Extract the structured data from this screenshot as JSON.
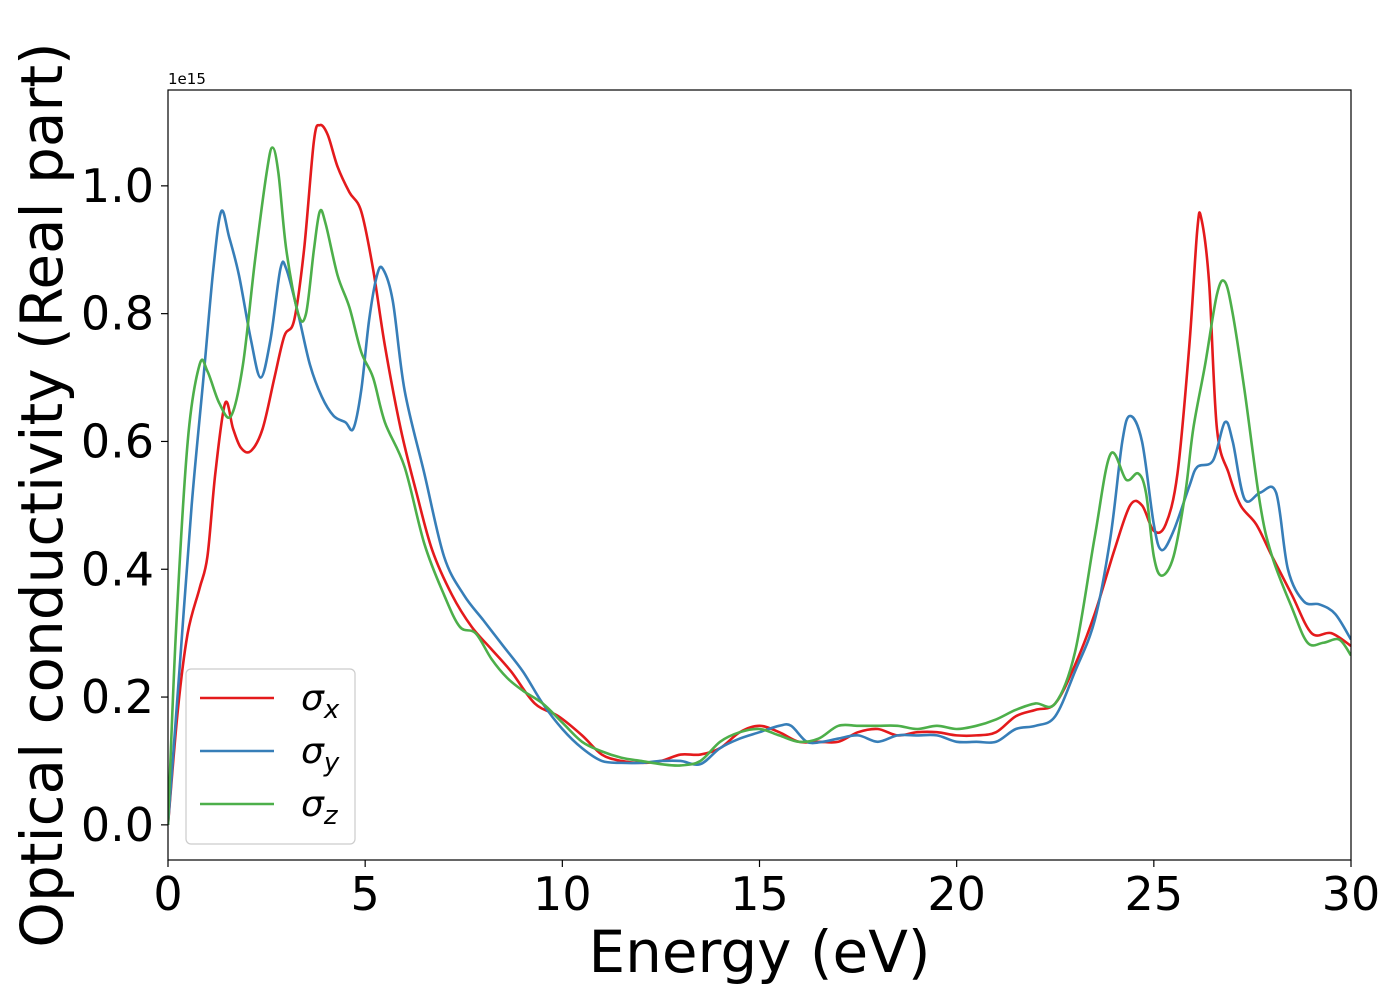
{
  "chart_data": {
    "type": "line",
    "title": "",
    "xlabel": "Energy (eV)",
    "ylabel": "Optical conductivity (Real part)",
    "y_offset_label": "1e15",
    "xlim": [
      0,
      30
    ],
    "ylim": [
      -0.055,
      1.15
    ],
    "x_ticks": [
      0,
      5,
      10,
      15,
      20,
      25,
      30
    ],
    "x_tick_labels": [
      "0",
      "5",
      "10",
      "15",
      "20",
      "25",
      "30"
    ],
    "y_ticks": [
      0.0,
      0.2,
      0.4,
      0.6,
      0.8,
      1.0
    ],
    "y_tick_labels": [
      "0.0",
      "0.2",
      "0.4",
      "0.6",
      "0.8",
      "1.0"
    ],
    "grid": false,
    "legend_position": "lower-left",
    "series": [
      {
        "name": "σx",
        "base": "σ",
        "sub": "x",
        "color": "#e41a1c",
        "points": [
          [
            0,
            0
          ],
          [
            0.25,
            0.18
          ],
          [
            0.5,
            0.3
          ],
          [
            0.8,
            0.37
          ],
          [
            1.0,
            0.42
          ],
          [
            1.2,
            0.55
          ],
          [
            1.45,
            0.66
          ],
          [
            1.65,
            0.62
          ],
          [
            1.85,
            0.59
          ],
          [
            2.1,
            0.585
          ],
          [
            2.4,
            0.62
          ],
          [
            2.7,
            0.7
          ],
          [
            2.95,
            0.765
          ],
          [
            3.2,
            0.79
          ],
          [
            3.45,
            0.9
          ],
          [
            3.7,
            1.07
          ],
          [
            3.85,
            1.095
          ],
          [
            4.05,
            1.08
          ],
          [
            4.3,
            1.03
          ],
          [
            4.6,
            0.99
          ],
          [
            4.9,
            0.96
          ],
          [
            5.2,
            0.87
          ],
          [
            5.5,
            0.75
          ],
          [
            5.9,
            0.62
          ],
          [
            6.3,
            0.52
          ],
          [
            6.7,
            0.43
          ],
          [
            7.2,
            0.36
          ],
          [
            7.7,
            0.31
          ],
          [
            8.2,
            0.275
          ],
          [
            8.7,
            0.24
          ],
          [
            9.3,
            0.19
          ],
          [
            9.9,
            0.17
          ],
          [
            10.5,
            0.14
          ],
          [
            11.0,
            0.11
          ],
          [
            11.5,
            0.1
          ],
          [
            12.0,
            0.097
          ],
          [
            12.5,
            0.1
          ],
          [
            13.0,
            0.11
          ],
          [
            13.5,
            0.11
          ],
          [
            14.0,
            0.12
          ],
          [
            14.5,
            0.145
          ],
          [
            15.0,
            0.155
          ],
          [
            15.5,
            0.145
          ],
          [
            16.0,
            0.13
          ],
          [
            16.5,
            0.13
          ],
          [
            17.0,
            0.13
          ],
          [
            17.5,
            0.145
          ],
          [
            18.0,
            0.15
          ],
          [
            18.5,
            0.14
          ],
          [
            19.0,
            0.145
          ],
          [
            19.5,
            0.145
          ],
          [
            20.0,
            0.14
          ],
          [
            20.5,
            0.14
          ],
          [
            21.0,
            0.145
          ],
          [
            21.5,
            0.17
          ],
          [
            22.0,
            0.18
          ],
          [
            22.5,
            0.19
          ],
          [
            23.0,
            0.25
          ],
          [
            23.5,
            0.33
          ],
          [
            24.0,
            0.43
          ],
          [
            24.4,
            0.5
          ],
          [
            24.7,
            0.5
          ],
          [
            25.0,
            0.46
          ],
          [
            25.3,
            0.47
          ],
          [
            25.6,
            0.55
          ],
          [
            25.9,
            0.75
          ],
          [
            26.1,
            0.93
          ],
          [
            26.2,
            0.95
          ],
          [
            26.4,
            0.85
          ],
          [
            26.6,
            0.62
          ],
          [
            26.9,
            0.55
          ],
          [
            27.2,
            0.5
          ],
          [
            27.6,
            0.47
          ],
          [
            28.0,
            0.42
          ],
          [
            28.5,
            0.36
          ],
          [
            29.0,
            0.3
          ],
          [
            29.5,
            0.3
          ],
          [
            30.0,
            0.28
          ]
        ]
      },
      {
        "name": "σy",
        "base": "σ",
        "sub": "y",
        "color": "#377eb8",
        "points": [
          [
            0,
            0
          ],
          [
            0.3,
            0.25
          ],
          [
            0.6,
            0.5
          ],
          [
            0.9,
            0.7
          ],
          [
            1.15,
            0.87
          ],
          [
            1.35,
            0.96
          ],
          [
            1.55,
            0.92
          ],
          [
            1.8,
            0.86
          ],
          [
            2.1,
            0.76
          ],
          [
            2.35,
            0.7
          ],
          [
            2.6,
            0.76
          ],
          [
            2.85,
            0.87
          ],
          [
            3.0,
            0.87
          ],
          [
            3.3,
            0.8
          ],
          [
            3.6,
            0.72
          ],
          [
            3.9,
            0.67
          ],
          [
            4.2,
            0.64
          ],
          [
            4.5,
            0.63
          ],
          [
            4.7,
            0.62
          ],
          [
            4.9,
            0.68
          ],
          [
            5.1,
            0.79
          ],
          [
            5.3,
            0.86
          ],
          [
            5.45,
            0.87
          ],
          [
            5.7,
            0.82
          ],
          [
            6.0,
            0.68
          ],
          [
            6.5,
            0.55
          ],
          [
            7.0,
            0.42
          ],
          [
            7.5,
            0.36
          ],
          [
            8.0,
            0.32
          ],
          [
            8.5,
            0.28
          ],
          [
            9.0,
            0.24
          ],
          [
            9.5,
            0.19
          ],
          [
            10.0,
            0.15
          ],
          [
            10.5,
            0.12
          ],
          [
            11.0,
            0.1
          ],
          [
            11.5,
            0.097
          ],
          [
            12.0,
            0.097
          ],
          [
            12.5,
            0.1
          ],
          [
            13.0,
            0.1
          ],
          [
            13.5,
            0.095
          ],
          [
            14.0,
            0.12
          ],
          [
            14.5,
            0.135
          ],
          [
            15.0,
            0.145
          ],
          [
            15.5,
            0.155
          ],
          [
            15.8,
            0.155
          ],
          [
            16.2,
            0.13
          ],
          [
            16.6,
            0.13
          ],
          [
            17.0,
            0.135
          ],
          [
            17.5,
            0.14
          ],
          [
            18.0,
            0.13
          ],
          [
            18.5,
            0.14
          ],
          [
            19.0,
            0.14
          ],
          [
            19.5,
            0.14
          ],
          [
            20.0,
            0.13
          ],
          [
            20.5,
            0.13
          ],
          [
            21.0,
            0.13
          ],
          [
            21.5,
            0.15
          ],
          [
            22.0,
            0.155
          ],
          [
            22.5,
            0.17
          ],
          [
            23.0,
            0.24
          ],
          [
            23.5,
            0.32
          ],
          [
            23.9,
            0.45
          ],
          [
            24.2,
            0.6
          ],
          [
            24.4,
            0.64
          ],
          [
            24.7,
            0.6
          ],
          [
            25.0,
            0.47
          ],
          [
            25.2,
            0.43
          ],
          [
            25.5,
            0.46
          ],
          [
            25.9,
            0.53
          ],
          [
            26.1,
            0.56
          ],
          [
            26.5,
            0.57
          ],
          [
            26.8,
            0.63
          ],
          [
            27.0,
            0.6
          ],
          [
            27.3,
            0.51
          ],
          [
            27.7,
            0.52
          ],
          [
            28.1,
            0.52
          ],
          [
            28.4,
            0.4
          ],
          [
            28.8,
            0.35
          ],
          [
            29.2,
            0.345
          ],
          [
            29.6,
            0.33
          ],
          [
            30.0,
            0.29
          ]
        ]
      },
      {
        "name": "σz",
        "base": "σ",
        "sub": "z",
        "color": "#4daf4a",
        "points": [
          [
            0,
            0
          ],
          [
            0.2,
            0.3
          ],
          [
            0.5,
            0.6
          ],
          [
            0.8,
            0.72
          ],
          [
            1.0,
            0.71
          ],
          [
            1.3,
            0.66
          ],
          [
            1.6,
            0.64
          ],
          [
            1.9,
            0.72
          ],
          [
            2.2,
            0.88
          ],
          [
            2.5,
            1.02
          ],
          [
            2.65,
            1.06
          ],
          [
            2.8,
            1.02
          ],
          [
            3.0,
            0.9
          ],
          [
            3.3,
            0.8
          ],
          [
            3.5,
            0.8
          ],
          [
            3.7,
            0.9
          ],
          [
            3.85,
            0.96
          ],
          [
            4.0,
            0.94
          ],
          [
            4.3,
            0.86
          ],
          [
            4.6,
            0.81
          ],
          [
            4.9,
            0.74
          ],
          [
            5.2,
            0.7
          ],
          [
            5.5,
            0.63
          ],
          [
            6.0,
            0.56
          ],
          [
            6.5,
            0.44
          ],
          [
            7.0,
            0.36
          ],
          [
            7.4,
            0.31
          ],
          [
            7.8,
            0.3
          ],
          [
            8.2,
            0.26
          ],
          [
            8.6,
            0.23
          ],
          [
            9.0,
            0.21
          ],
          [
            9.5,
            0.19
          ],
          [
            10.0,
            0.16
          ],
          [
            10.5,
            0.13
          ],
          [
            11.0,
            0.115
          ],
          [
            11.5,
            0.105
          ],
          [
            12.0,
            0.1
          ],
          [
            12.5,
            0.095
          ],
          [
            13.0,
            0.093
          ],
          [
            13.5,
            0.1
          ],
          [
            14.0,
            0.13
          ],
          [
            14.5,
            0.145
          ],
          [
            15.0,
            0.15
          ],
          [
            15.5,
            0.14
          ],
          [
            16.0,
            0.13
          ],
          [
            16.5,
            0.135
          ],
          [
            17.0,
            0.155
          ],
          [
            17.5,
            0.155
          ],
          [
            18.0,
            0.155
          ],
          [
            18.5,
            0.155
          ],
          [
            19.0,
            0.15
          ],
          [
            19.5,
            0.155
          ],
          [
            20.0,
            0.15
          ],
          [
            20.5,
            0.155
          ],
          [
            21.0,
            0.165
          ],
          [
            21.5,
            0.18
          ],
          [
            22.0,
            0.19
          ],
          [
            22.5,
            0.19
          ],
          [
            23.0,
            0.27
          ],
          [
            23.5,
            0.45
          ],
          [
            23.9,
            0.58
          ],
          [
            24.3,
            0.54
          ],
          [
            24.6,
            0.55
          ],
          [
            24.8,
            0.52
          ],
          [
            25.0,
            0.42
          ],
          [
            25.2,
            0.39
          ],
          [
            25.5,
            0.42
          ],
          [
            25.8,
            0.52
          ],
          [
            26.0,
            0.62
          ],
          [
            26.3,
            0.72
          ],
          [
            26.6,
            0.83
          ],
          [
            26.8,
            0.85
          ],
          [
            27.0,
            0.8
          ],
          [
            27.3,
            0.68
          ],
          [
            27.7,
            0.5
          ],
          [
            28.0,
            0.42
          ],
          [
            28.5,
            0.34
          ],
          [
            28.9,
            0.285
          ],
          [
            29.3,
            0.285
          ],
          [
            29.7,
            0.29
          ],
          [
            30.0,
            0.265
          ]
        ]
      }
    ]
  }
}
